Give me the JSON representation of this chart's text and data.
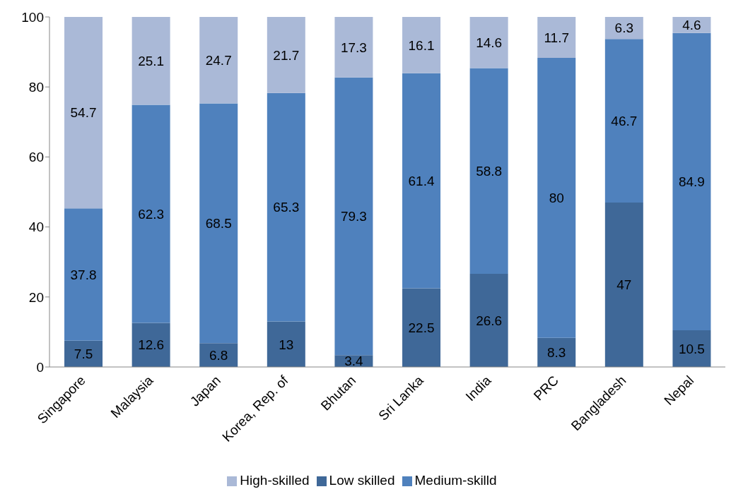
{
  "chart_data": {
    "type": "bar",
    "stacked": true,
    "categories": [
      "Singapore",
      "Malaysia",
      "Japan",
      "Korea, Rep. of",
      "Bhutan",
      "Sri Lanka",
      "India",
      "PRC",
      "Bangladesh",
      "Nepal"
    ],
    "series": [
      {
        "name": "Low skilled",
        "color": "#3f6898",
        "values": [
          7.5,
          12.6,
          6.8,
          13,
          3.4,
          22.5,
          26.6,
          8.3,
          47,
          10.5
        ]
      },
      {
        "name": "Medium-skilld",
        "color": "#4f81bd",
        "values": [
          37.8,
          62.3,
          68.5,
          65.3,
          79.3,
          61.4,
          58.8,
          80,
          46.7,
          84.9
        ]
      },
      {
        "name": "High-skilled",
        "color": "#aab9d7",
        "values": [
          54.7,
          25.1,
          24.7,
          21.7,
          17.3,
          16.1,
          14.6,
          11.7,
          6.3,
          4.6
        ]
      }
    ],
    "ylim": [
      0,
      100
    ],
    "yticks": [
      0,
      20,
      40,
      60,
      80,
      100
    ],
    "grid": false,
    "legend": "bottom",
    "data_labels": true
  }
}
